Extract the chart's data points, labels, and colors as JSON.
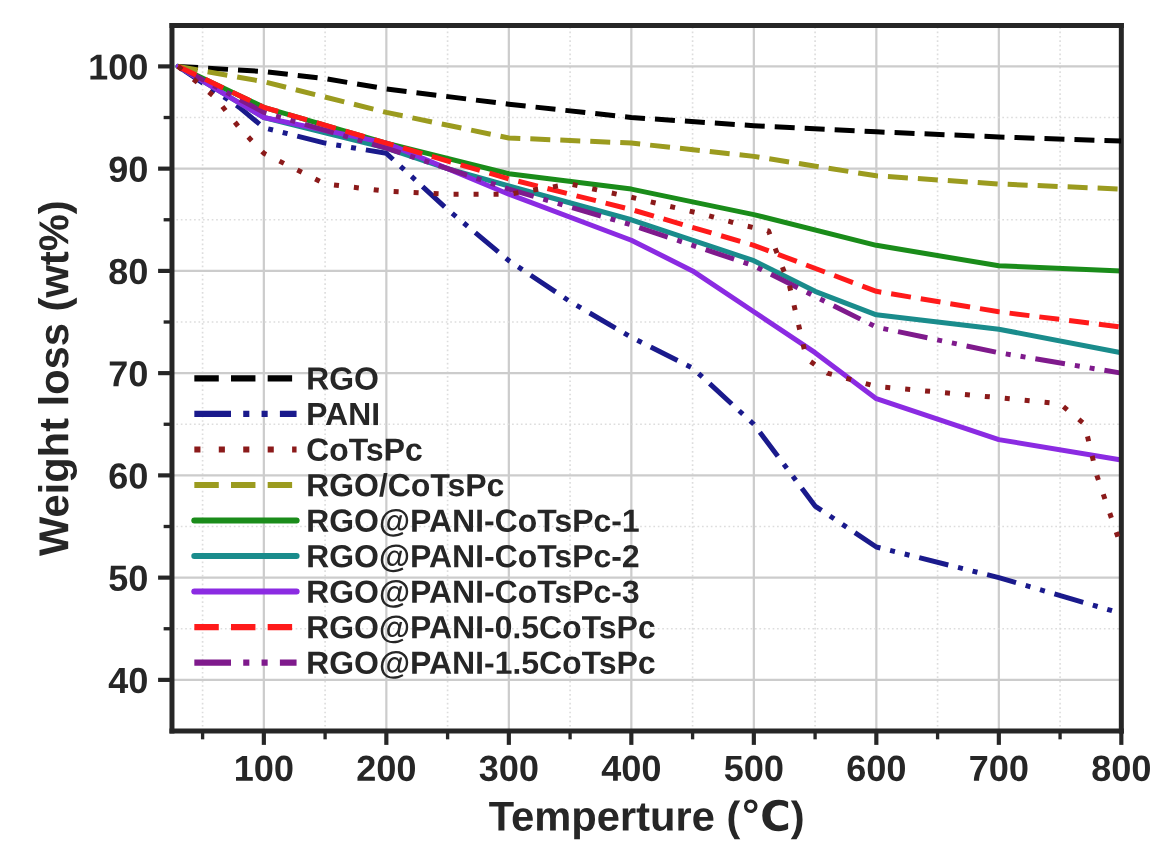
{
  "chart_data": {
    "type": "line",
    "xlabel": "Temperture (℃)",
    "ylabel": "Weight loss (wt%)",
    "xlim": [
      25,
      800
    ],
    "ylim": [
      35,
      104
    ],
    "xticks": [
      100,
      200,
      300,
      400,
      500,
      600,
      700,
      800
    ],
    "yticks": [
      40,
      50,
      60,
      70,
      80,
      90,
      100
    ],
    "grid": true,
    "legend": "left",
    "marker": "none",
    "series": [
      {
        "name": "RGO",
        "color": "#000000",
        "line_style": "dashed",
        "x": [
          30,
          100,
          150,
          200,
          300,
          400,
          500,
          600,
          700,
          800
        ],
        "values": [
          100,
          99.5,
          98.8,
          97.8,
          96.3,
          95,
          94.2,
          93.6,
          93.1,
          92.7
        ]
      },
      {
        "name": "PANI",
        "color": "#1a1a8c",
        "line_style": "dashdotdot",
        "x": [
          30,
          80,
          100,
          150,
          200,
          250,
          300,
          350,
          400,
          450,
          500,
          550,
          600,
          700,
          800
        ],
        "values": [
          100,
          96,
          94,
          92.5,
          91.5,
          86,
          81,
          77,
          73.5,
          70.5,
          65,
          57,
          53,
          50,
          46.5
        ]
      },
      {
        "name": "CoTsPc",
        "color": "#8b1a1a",
        "line_style": "dotted",
        "x": [
          30,
          60,
          80,
          100,
          150,
          200,
          250,
          300,
          350,
          400,
          460,
          490,
          512,
          529,
          543,
          560,
          600,
          700,
          750,
          770,
          780,
          800
        ],
        "values": [
          100,
          97,
          94,
          91.5,
          88.5,
          87.8,
          87.5,
          87.5,
          88.5,
          87.2,
          85.5,
          84.5,
          83.9,
          78.6,
          71.4,
          70,
          68.7,
          67.6,
          67,
          65,
          60,
          53
        ]
      },
      {
        "name": "RGO/CoTsPc",
        "color": "#9b9b1f",
        "line_style": "dashed",
        "x": [
          30,
          100,
          200,
          300,
          400,
          500,
          600,
          700,
          800
        ],
        "values": [
          100,
          98.5,
          95.5,
          93,
          92.5,
          91.2,
          89.3,
          88.5,
          88
        ]
      },
      {
        "name": "RGO@PANI-CoTsPc-1",
        "color": "#1a8c1a",
        "line_style": "solid",
        "x": [
          30,
          100,
          200,
          300,
          400,
          500,
          600,
          700,
          800
        ],
        "values": [
          100,
          96,
          92.5,
          89.5,
          88,
          85.5,
          82.5,
          80.5,
          80
        ]
      },
      {
        "name": "RGO@PANI-CoTsPc-2",
        "color": "#1a8c8c",
        "line_style": "solid",
        "x": [
          30,
          100,
          200,
          250,
          300,
          400,
          500,
          550,
          600,
          700,
          800
        ],
        "values": [
          100,
          95,
          92,
          90,
          88.3,
          85,
          81,
          78,
          75.7,
          74.3,
          72
        ]
      },
      {
        "name": "RGO@PANI-CoTsPc-3",
        "color": "#8b2be2",
        "line_style": "solid",
        "x": [
          30,
          100,
          200,
          300,
          400,
          450,
          500,
          550,
          600,
          700,
          800
        ],
        "values": [
          100,
          95,
          92.5,
          87.5,
          83,
          80,
          76,
          72,
          67.5,
          63.5,
          61.5
        ]
      },
      {
        "name": "RGO@PANI-0.5CoTsPc",
        "color": "#ff1a1a",
        "line_style": "dashed",
        "x": [
          30,
          100,
          200,
          300,
          400,
          500,
          600,
          700,
          800
        ],
        "values": [
          100,
          96,
          92.5,
          89,
          86,
          82.5,
          78,
          76,
          74.5
        ]
      },
      {
        "name": "RGO@PANI-1.5CoTsPc",
        "color": "#7f1a8c",
        "line_style": "dashdotdot",
        "x": [
          30,
          100,
          200,
          300,
          400,
          500,
          600,
          700,
          800
        ],
        "values": [
          100,
          95.5,
          92,
          88,
          84.5,
          80.5,
          74.5,
          72,
          70
        ]
      }
    ]
  }
}
